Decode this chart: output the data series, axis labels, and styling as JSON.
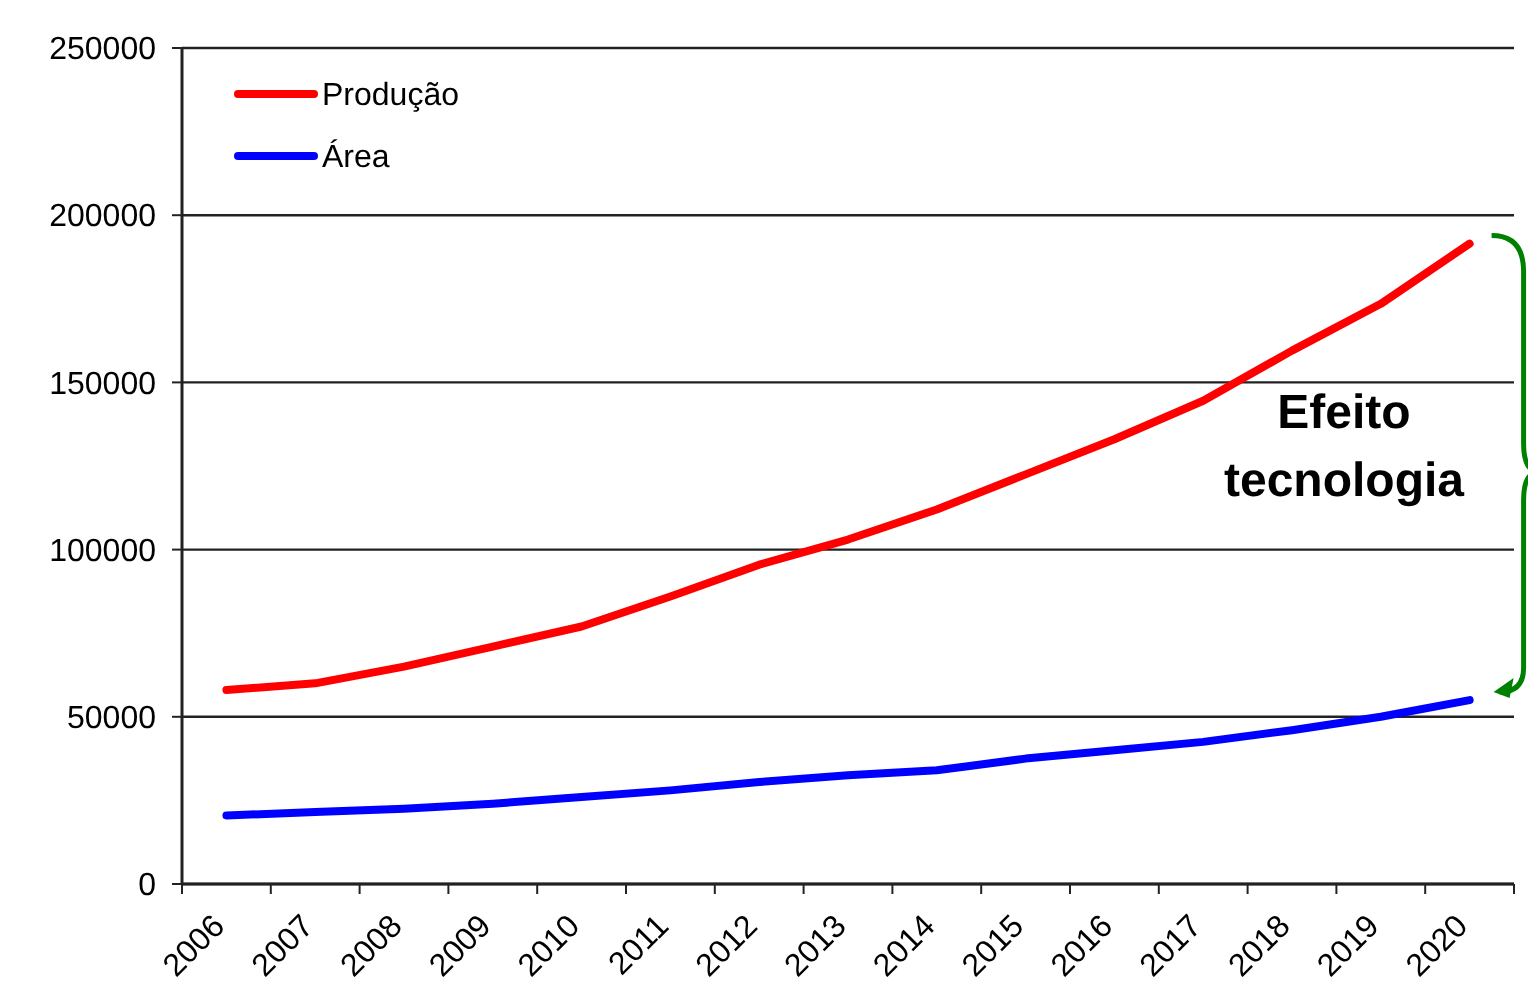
{
  "chart_data": {
    "type": "line",
    "categories": [
      "2006",
      "2007",
      "2008",
      "2009",
      "2010",
      "2011",
      "2012",
      "2013",
      "2014",
      "2015",
      "2016",
      "2017",
      "2018",
      "2019",
      "2020"
    ],
    "series": [
      {
        "name": "Produção",
        "color": "#ff0000",
        "values": [
          58000,
          60000,
          65000,
          71000,
          77000,
          86000,
          95500,
          103000,
          112000,
          122500,
          133000,
          144500,
          159500,
          173500,
          191500
        ]
      },
      {
        "name": "Área",
        "color": "#0000ff",
        "values": [
          20500,
          21500,
          22500,
          24000,
          26000,
          28000,
          30500,
          32500,
          34000,
          37500,
          40000,
          42500,
          46000,
          50000,
          55000
        ]
      }
    ],
    "ylim": [
      0,
      250000
    ],
    "yticks": [
      0,
      50000,
      100000,
      150000,
      200000,
      250000
    ],
    "grid": "y",
    "legend": "top left",
    "marker": "none",
    "line_style": "solid",
    "annotations": [
      "Efeito tecnologia"
    ]
  }
}
